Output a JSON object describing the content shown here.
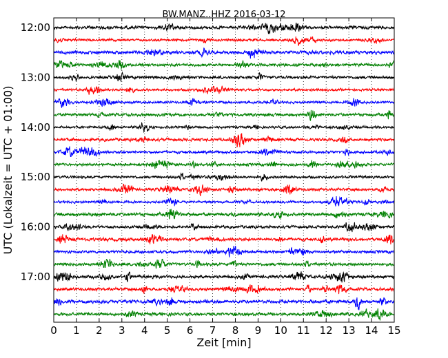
{
  "chart_data": {
    "type": "line",
    "title": "BW.MANZ..HHZ 2016-03-12",
    "xlabel": "Zeit  [min]",
    "ylabel": "UTC (Lokalzeit = UTC + 01:00)",
    "xlim": [
      0,
      15
    ],
    "x_ticks": [
      0,
      1,
      2,
      3,
      4,
      5,
      6,
      7,
      8,
      9,
      10,
      11,
      12,
      13,
      14,
      15
    ],
    "x_tick_labels": [
      "0",
      "1",
      "2",
      "3",
      "4",
      "5",
      "6",
      "7",
      "8",
      "9",
      "10",
      "11",
      "12",
      "13",
      "14",
      "15"
    ],
    "y_tick_labels": [
      "12:00",
      "13:00",
      "14:00",
      "15:00",
      "16:00",
      "17:00"
    ],
    "trace_interval_min": 15,
    "start_hour": 12,
    "grid": "vertical-dotted",
    "series_colors": [
      "#000000",
      "#ff0000",
      "#0000ff",
      "#008000"
    ],
    "traces": [
      {
        "start": "12:00",
        "color": "#000000"
      },
      {
        "start": "12:15",
        "color": "#ff0000"
      },
      {
        "start": "12:30",
        "color": "#0000ff"
      },
      {
        "start": "12:45",
        "color": "#008000"
      },
      {
        "start": "13:00",
        "color": "#000000"
      },
      {
        "start": "13:15",
        "color": "#ff0000"
      },
      {
        "start": "13:30",
        "color": "#0000ff"
      },
      {
        "start": "13:45",
        "color": "#008000"
      },
      {
        "start": "14:00",
        "color": "#000000"
      },
      {
        "start": "14:15",
        "color": "#ff0000"
      },
      {
        "start": "14:30",
        "color": "#0000ff"
      },
      {
        "start": "14:45",
        "color": "#008000"
      },
      {
        "start": "15:00",
        "color": "#000000"
      },
      {
        "start": "15:15",
        "color": "#ff0000"
      },
      {
        "start": "15:30",
        "color": "#0000ff"
      },
      {
        "start": "15:45",
        "color": "#008000"
      },
      {
        "start": "16:00",
        "color": "#000000"
      },
      {
        "start": "16:15",
        "color": "#ff0000"
      },
      {
        "start": "16:30",
        "color": "#0000ff"
      },
      {
        "start": "16:45",
        "color": "#008000"
      },
      {
        "start": "17:00",
        "color": "#000000"
      },
      {
        "start": "17:15",
        "color": "#ff0000"
      },
      {
        "start": "17:30",
        "color": "#0000ff"
      },
      {
        "start": "17:45",
        "color": "#008000"
      }
    ]
  }
}
